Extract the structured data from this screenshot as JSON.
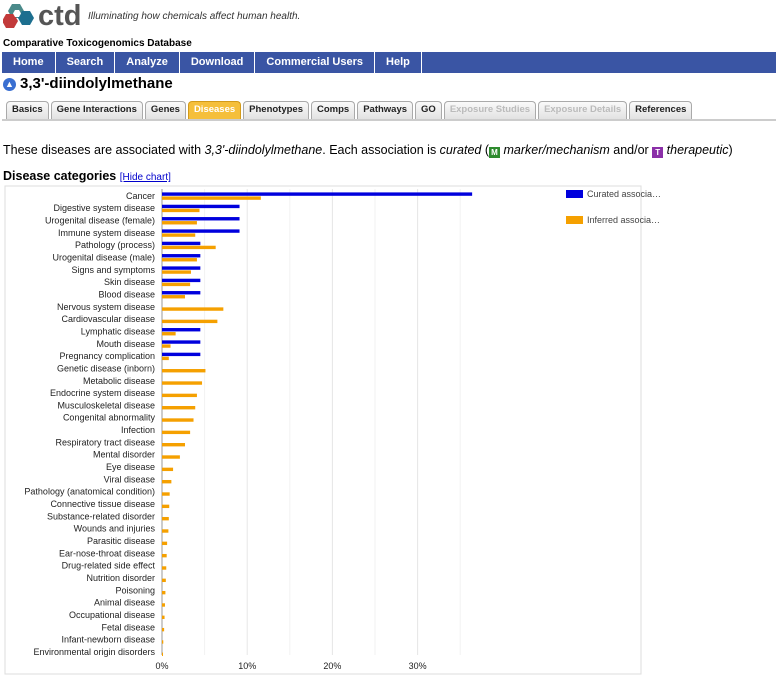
{
  "header": {
    "logo_text": "ctd",
    "tagline": "Illuminating how chemicals affect human health.",
    "db_name": "Comparative Toxicogenomics Database"
  },
  "nav": [
    "Home",
    "Search",
    "Analyze",
    "Download",
    "Commercial Users",
    "Help"
  ],
  "page_title": "3,3'-diindolylmethane",
  "tabs": [
    {
      "label": "Basics",
      "state": "normal"
    },
    {
      "label": "Gene Interactions",
      "state": "normal"
    },
    {
      "label": "Genes",
      "state": "normal"
    },
    {
      "label": "Diseases",
      "state": "active"
    },
    {
      "label": "Phenotypes",
      "state": "normal"
    },
    {
      "label": "Comps",
      "state": "normal"
    },
    {
      "label": "Pathways",
      "state": "normal"
    },
    {
      "label": "GO",
      "state": "normal"
    },
    {
      "label": "Exposure Studies",
      "state": "disabled"
    },
    {
      "label": "Exposure Details",
      "state": "disabled"
    },
    {
      "label": "References",
      "state": "normal"
    }
  ],
  "intro": {
    "prefix": "These diseases are associated with ",
    "chemical": "3,3'-diindolylmethane",
    "middle": ". Each association is ",
    "curated": "curated",
    "paren_open": " (",
    "badge_m": "M",
    "marker": "marker/mechanism",
    "and_or": " and/or ",
    "badge_t": "T",
    "therapeutic": "therapeutic",
    "paren_close": ")"
  },
  "section": {
    "heading": "Disease categories",
    "hide_chart": "[Hide chart]"
  },
  "colors": {
    "curated": "#0000dd",
    "inferred": "#f5a000",
    "nav": "#3a55a4"
  },
  "chart_data": {
    "type": "bar",
    "orientation": "horizontal",
    "categories": [
      "Cancer",
      "Digestive system disease",
      "Urogenital disease (female)",
      "Immune system disease",
      "Pathology (process)",
      "Urogenital disease (male)",
      "Signs and symptoms",
      "Skin disease",
      "Blood disease",
      "Nervous system disease",
      "Cardiovascular disease",
      "Lymphatic disease",
      "Mouth disease",
      "Pregnancy complication",
      "Genetic disease (inborn)",
      "Metabolic disease",
      "Endocrine system disease",
      "Musculoskeletal disease",
      "Congenital abnormality",
      "Infection",
      "Respiratory tract disease",
      "Mental disorder",
      "Eye disease",
      "Viral disease",
      "Pathology (anatomical condition)",
      "Connective tissue disease",
      "Substance-related disorder",
      "Wounds and injuries",
      "Parasitic disease",
      "Ear-nose-throat disease",
      "Drug-related side effect",
      "Nutrition disorder",
      "Poisoning",
      "Animal disease",
      "Occupational disease",
      "Fetal disease",
      "Infant-newborn disease",
      "Environmental origin disorders"
    ],
    "series": [
      {
        "name": "Curated associa…",
        "values": [
          36.4,
          9.1,
          9.1,
          9.1,
          4.5,
          4.5,
          4.5,
          4.5,
          4.5,
          0,
          0,
          4.5,
          4.5,
          4.5,
          0,
          0,
          0,
          0,
          0,
          0,
          0,
          0,
          0,
          0,
          0,
          0,
          0,
          0,
          0,
          0,
          0,
          0,
          0,
          0,
          0,
          0,
          0,
          0
        ]
      },
      {
        "name": "Inferred associa…",
        "values": [
          11.6,
          4.4,
          4.1,
          3.9,
          6.3,
          4.1,
          3.4,
          3.3,
          2.7,
          7.2,
          6.5,
          1.6,
          1.0,
          0.8,
          5.1,
          4.7,
          4.1,
          3.9,
          3.7,
          3.3,
          2.7,
          2.1,
          1.3,
          1.1,
          0.9,
          0.85,
          0.8,
          0.75,
          0.6,
          0.55,
          0.5,
          0.45,
          0.4,
          0.35,
          0.3,
          0.25,
          0.15,
          0.05
        ]
      }
    ],
    "xticks": [
      "0%",
      "10%",
      "20%",
      "30%"
    ],
    "xlim": [
      0,
      44.6
    ],
    "legend_position": "top-right"
  }
}
